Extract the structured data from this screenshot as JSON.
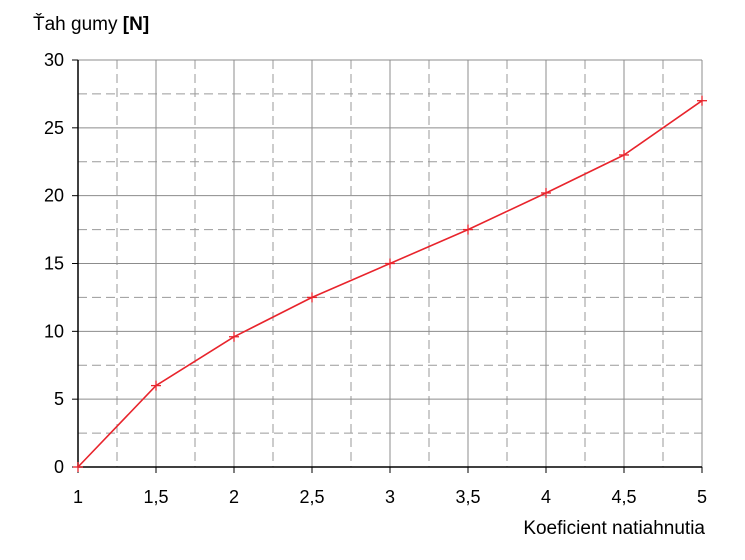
{
  "chart_data": {
    "type": "line",
    "title": "",
    "ylabel_prefix": "Ťah gumy ",
    "ylabel_unit": "[N]",
    "xlabel": "Koeficient natiahnutia",
    "xlim": [
      1,
      5
    ],
    "ylim": [
      0,
      30
    ],
    "x_major_ticks": [
      1,
      1.5,
      2,
      2.5,
      3,
      3.5,
      4,
      4.5,
      5
    ],
    "x_tick_labels": [
      "1",
      "1,5",
      "2",
      "2,5",
      "3",
      "3,5",
      "4",
      "4,5",
      "5"
    ],
    "y_major_ticks": [
      0,
      5,
      10,
      15,
      20,
      25,
      30
    ],
    "y_tick_labels": [
      "0",
      "5",
      "10",
      "15",
      "20",
      "25",
      "30"
    ],
    "x_minor_ticks": [
      1.25,
      1.75,
      2.25,
      2.75,
      3.25,
      3.75,
      4.25,
      4.75
    ],
    "y_minor_ticks": [
      2.5,
      7.5,
      12.5,
      17.5,
      22.5,
      27.5
    ],
    "grid": true,
    "series": [
      {
        "x": [
          1,
          1.5,
          2,
          2.5,
          3,
          3.5,
          4,
          4.5,
          5
        ],
        "y": [
          0,
          6,
          9.6,
          12.5,
          15,
          17.5,
          20.2,
          23,
          27
        ],
        "color": "#e8242c",
        "marker": "plus"
      }
    ],
    "colors": {
      "axis": "#000000",
      "major_grid": "#8c8c8c",
      "minor_grid": "#9a9a9a"
    }
  }
}
